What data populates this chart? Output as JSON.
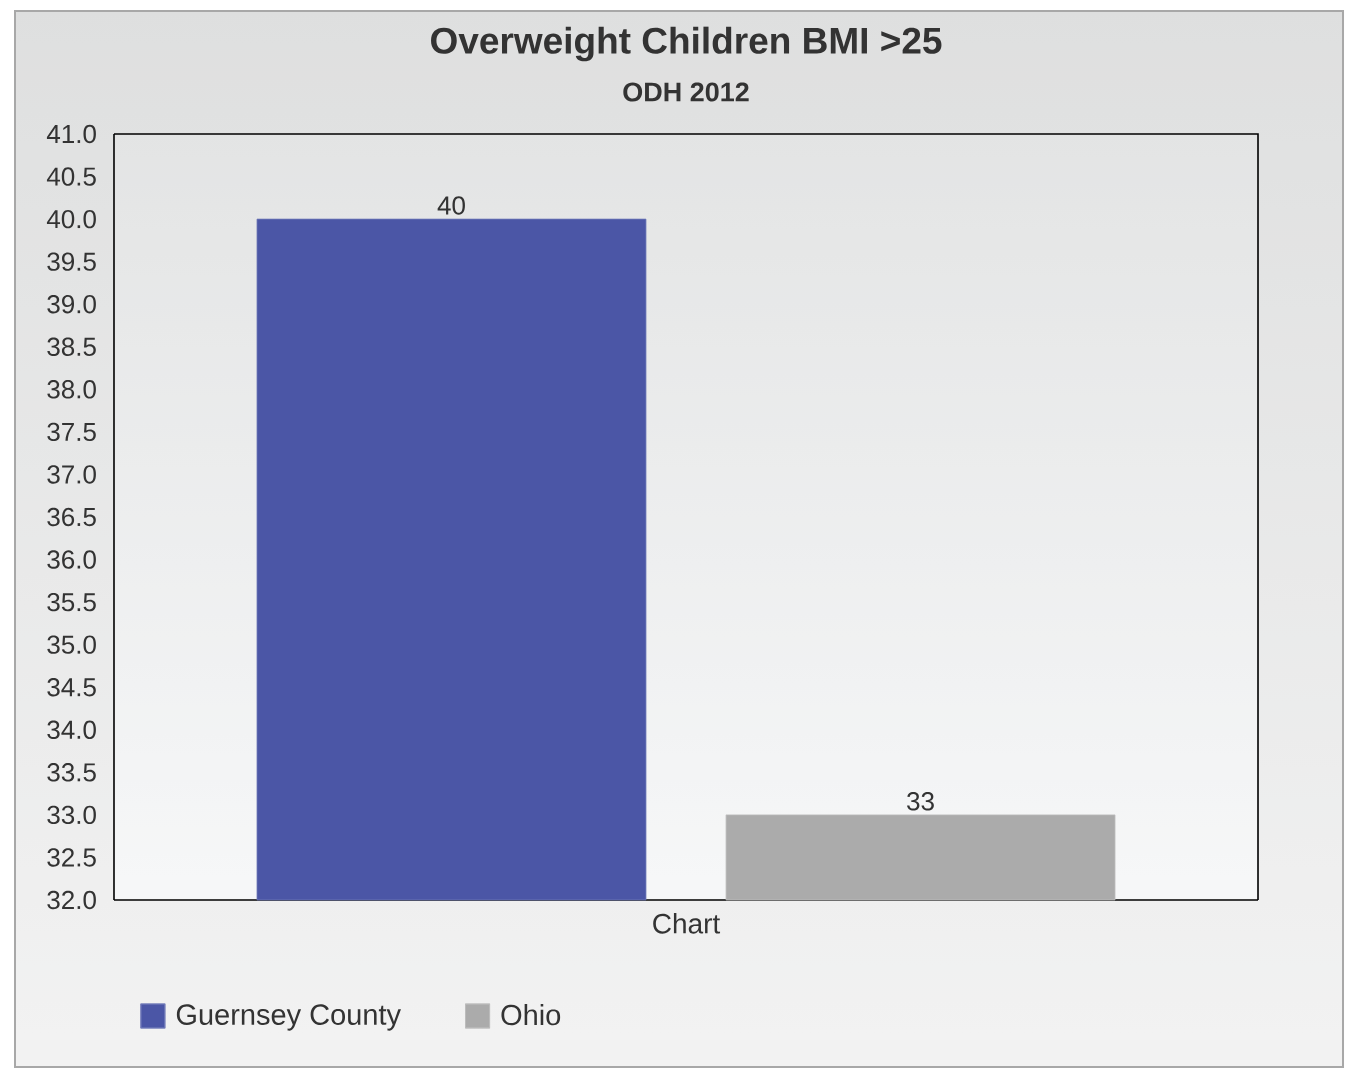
{
  "chart_data": {
    "type": "bar",
    "title": "Overweight Children BMI >25",
    "subtitle": "ODH 2012",
    "categories": [
      "Chart"
    ],
    "series": [
      {
        "name": "Guernsey County",
        "color": "#4b56a6",
        "values": [
          40
        ]
      },
      {
        "name": "Ohio",
        "color": "#ababab",
        "values": [
          33
        ]
      }
    ],
    "ylim": [
      32,
      41
    ],
    "yticks": [
      {
        "value": 32,
        "label": "32.0"
      },
      {
        "value": 32.5,
        "label": "32.5"
      },
      {
        "value": 33,
        "label": "33.0"
      },
      {
        "value": 33.5,
        "label": "33.5"
      },
      {
        "value": 34,
        "label": "34.0"
      },
      {
        "value": 34.5,
        "label": "34.5"
      },
      {
        "value": 35,
        "label": "35.0"
      },
      {
        "value": 35.5,
        "label": "35.5"
      },
      {
        "value": 36,
        "label": "36.0"
      },
      {
        "value": 36.5,
        "label": "36.5"
      },
      {
        "value": 37,
        "label": "37.0"
      },
      {
        "value": 37.5,
        "label": "37.5"
      },
      {
        "value": 38,
        "label": "38.0"
      },
      {
        "value": 38.5,
        "label": "38.5"
      },
      {
        "value": 39,
        "label": "39.0"
      },
      {
        "value": 39.5,
        "label": "39.5"
      },
      {
        "value": 40,
        "label": "40.0"
      },
      {
        "value": 40.5,
        "label": "40.5"
      },
      {
        "value": 41,
        "label": "41.0"
      }
    ],
    "data_labels": true,
    "legend": "bottom left"
  }
}
